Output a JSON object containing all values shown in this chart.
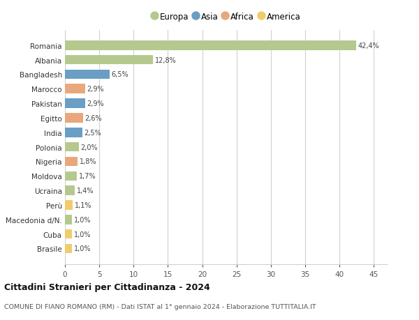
{
  "countries": [
    "Romania",
    "Albania",
    "Bangladesh",
    "Marocco",
    "Pakistan",
    "Egitto",
    "India",
    "Polonia",
    "Nigeria",
    "Moldova",
    "Ucraina",
    "Perù",
    "Macedonia d/N.",
    "Cuba",
    "Brasile"
  ],
  "values": [
    42.4,
    12.8,
    6.5,
    2.9,
    2.9,
    2.6,
    2.5,
    2.0,
    1.8,
    1.7,
    1.4,
    1.1,
    1.0,
    1.0,
    1.0
  ],
  "labels": [
    "42,4%",
    "12,8%",
    "6,5%",
    "2,9%",
    "2,9%",
    "2,6%",
    "2,5%",
    "2,0%",
    "1,8%",
    "1,7%",
    "1,4%",
    "1,1%",
    "1,0%",
    "1,0%",
    "1,0%"
  ],
  "colors": [
    "#b5c98e",
    "#b5c98e",
    "#6a9ec5",
    "#e8a87c",
    "#6a9ec5",
    "#e8a87c",
    "#6a9ec5",
    "#b5c98e",
    "#e8a87c",
    "#b5c98e",
    "#b5c98e",
    "#f0cc6e",
    "#b5c98e",
    "#f0cc6e",
    "#f0cc6e"
  ],
  "legend_labels": [
    "Europa",
    "Asia",
    "Africa",
    "America"
  ],
  "legend_colors": [
    "#b5c98e",
    "#6a9ec5",
    "#e8a87c",
    "#f0cc6e"
  ],
  "title": "Cittadini Stranieri per Cittadinanza - 2024",
  "subtitle": "COMUNE DI FIANO ROMANO (RM) - Dati ISTAT al 1° gennaio 2024 - Elaborazione TUTTITALIA.IT",
  "xlim": [
    0,
    47
  ],
  "xticks": [
    0,
    5,
    10,
    15,
    20,
    25,
    30,
    35,
    40,
    45
  ],
  "background_color": "#ffffff",
  "grid_color": "#d0d0d0",
  "bar_height": 0.65
}
